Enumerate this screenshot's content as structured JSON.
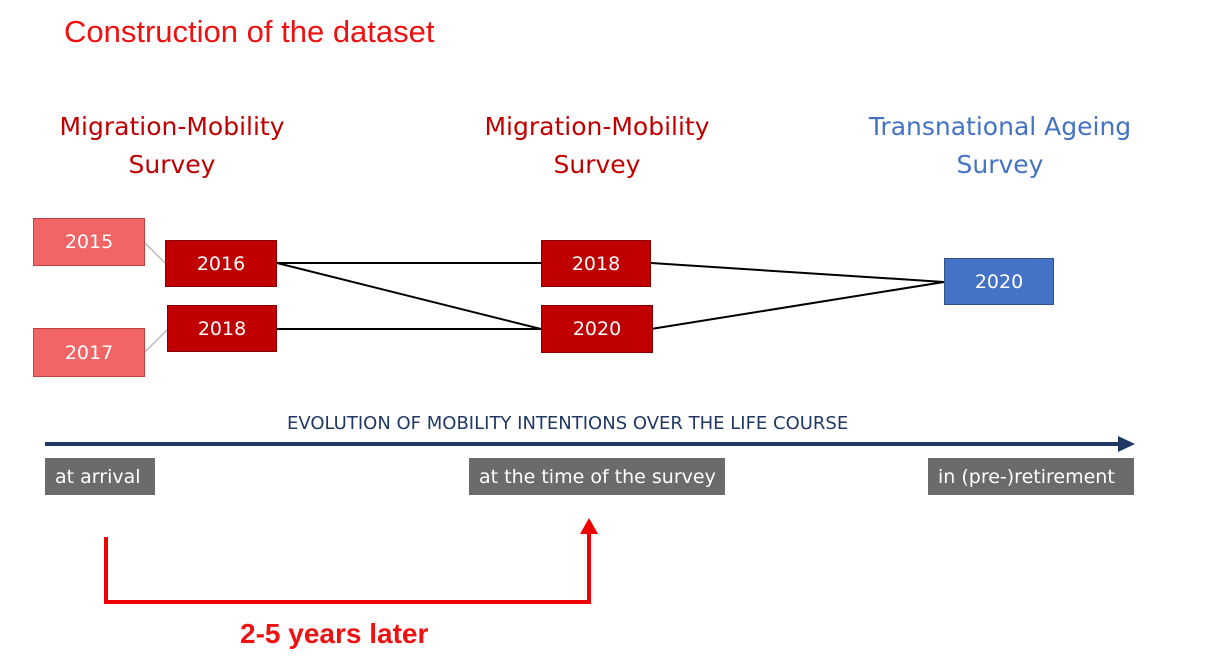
{
  "title": "Construction of the dataset",
  "surveys": {
    "left": {
      "line1": "Migration-Mobility",
      "line2": "Survey",
      "color": "#c00000"
    },
    "middle": {
      "line1": "Migration-Mobility",
      "line2": "Survey",
      "color": "#c00000"
    },
    "right": {
      "line1": "Transnational Ageing",
      "line2": "Survey",
      "color": "#4472c4"
    }
  },
  "boxes": {
    "arrival_2015": "2015",
    "arrival_2017": "2017",
    "wave_2016": "2016",
    "wave_2018a": "2018",
    "wave_2018b": "2018",
    "wave_2020": "2020",
    "tas_2020": "2020"
  },
  "timeline": {
    "label": "EVOLUTION OF MOBILITY INTENTIONS OVER THE LIFE COURSE",
    "stages": [
      "at arrival",
      "at the time of the survey",
      "in (pre-)retirement"
    ]
  },
  "interval_label": "2-5 years later",
  "colors": {
    "accent_red": "#ee1111",
    "dark_red": "#c00000",
    "pink": "#f26565",
    "blue": "#4472c4",
    "navy": "#1f3864",
    "gray": "#6b6b6b"
  }
}
